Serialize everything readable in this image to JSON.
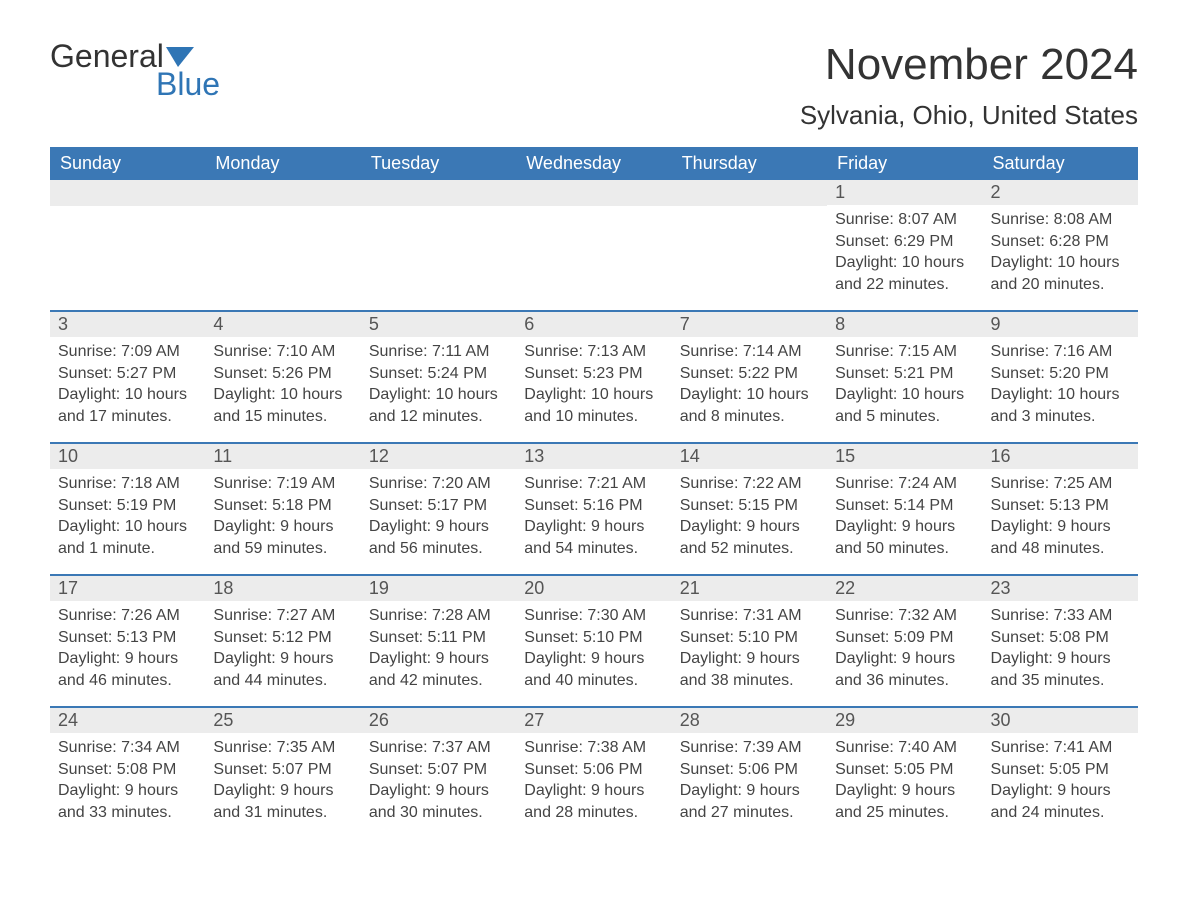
{
  "logo": {
    "text1": "General",
    "text2": "Blue",
    "flag_color": "#2f75b5"
  },
  "title": "November 2024",
  "location": "Sylvania, Ohio, United States",
  "colors": {
    "header_bg": "#3b78b5",
    "header_fg": "#ffffff",
    "daynum_bg": "#ececec",
    "rule": "#3b78b5",
    "text": "#333333",
    "accent": "#2f75b5"
  },
  "days_of_week": [
    "Sunday",
    "Monday",
    "Tuesday",
    "Wednesday",
    "Thursday",
    "Friday",
    "Saturday"
  ],
  "weeks": [
    [
      null,
      null,
      null,
      null,
      null,
      {
        "n": "1",
        "sunrise": "8:07 AM",
        "sunset": "6:29 PM",
        "daylight": "10 hours and 22 minutes."
      },
      {
        "n": "2",
        "sunrise": "8:08 AM",
        "sunset": "6:28 PM",
        "daylight": "10 hours and 20 minutes."
      }
    ],
    [
      {
        "n": "3",
        "sunrise": "7:09 AM",
        "sunset": "5:27 PM",
        "daylight": "10 hours and 17 minutes."
      },
      {
        "n": "4",
        "sunrise": "7:10 AM",
        "sunset": "5:26 PM",
        "daylight": "10 hours and 15 minutes."
      },
      {
        "n": "5",
        "sunrise": "7:11 AM",
        "sunset": "5:24 PM",
        "daylight": "10 hours and 12 minutes."
      },
      {
        "n": "6",
        "sunrise": "7:13 AM",
        "sunset": "5:23 PM",
        "daylight": "10 hours and 10 minutes."
      },
      {
        "n": "7",
        "sunrise": "7:14 AM",
        "sunset": "5:22 PM",
        "daylight": "10 hours and 8 minutes."
      },
      {
        "n": "8",
        "sunrise": "7:15 AM",
        "sunset": "5:21 PM",
        "daylight": "10 hours and 5 minutes."
      },
      {
        "n": "9",
        "sunrise": "7:16 AM",
        "sunset": "5:20 PM",
        "daylight": "10 hours and 3 minutes."
      }
    ],
    [
      {
        "n": "10",
        "sunrise": "7:18 AM",
        "sunset": "5:19 PM",
        "daylight": "10 hours and 1 minute."
      },
      {
        "n": "11",
        "sunrise": "7:19 AM",
        "sunset": "5:18 PM",
        "daylight": "9 hours and 59 minutes."
      },
      {
        "n": "12",
        "sunrise": "7:20 AM",
        "sunset": "5:17 PM",
        "daylight": "9 hours and 56 minutes."
      },
      {
        "n": "13",
        "sunrise": "7:21 AM",
        "sunset": "5:16 PM",
        "daylight": "9 hours and 54 minutes."
      },
      {
        "n": "14",
        "sunrise": "7:22 AM",
        "sunset": "5:15 PM",
        "daylight": "9 hours and 52 minutes."
      },
      {
        "n": "15",
        "sunrise": "7:24 AM",
        "sunset": "5:14 PM",
        "daylight": "9 hours and 50 minutes."
      },
      {
        "n": "16",
        "sunrise": "7:25 AM",
        "sunset": "5:13 PM",
        "daylight": "9 hours and 48 minutes."
      }
    ],
    [
      {
        "n": "17",
        "sunrise": "7:26 AM",
        "sunset": "5:13 PM",
        "daylight": "9 hours and 46 minutes."
      },
      {
        "n": "18",
        "sunrise": "7:27 AM",
        "sunset": "5:12 PM",
        "daylight": "9 hours and 44 minutes."
      },
      {
        "n": "19",
        "sunrise": "7:28 AM",
        "sunset": "5:11 PM",
        "daylight": "9 hours and 42 minutes."
      },
      {
        "n": "20",
        "sunrise": "7:30 AM",
        "sunset": "5:10 PM",
        "daylight": "9 hours and 40 minutes."
      },
      {
        "n": "21",
        "sunrise": "7:31 AM",
        "sunset": "5:10 PM",
        "daylight": "9 hours and 38 minutes."
      },
      {
        "n": "22",
        "sunrise": "7:32 AM",
        "sunset": "5:09 PM",
        "daylight": "9 hours and 36 minutes."
      },
      {
        "n": "23",
        "sunrise": "7:33 AM",
        "sunset": "5:08 PM",
        "daylight": "9 hours and 35 minutes."
      }
    ],
    [
      {
        "n": "24",
        "sunrise": "7:34 AM",
        "sunset": "5:08 PM",
        "daylight": "9 hours and 33 minutes."
      },
      {
        "n": "25",
        "sunrise": "7:35 AM",
        "sunset": "5:07 PM",
        "daylight": "9 hours and 31 minutes."
      },
      {
        "n": "26",
        "sunrise": "7:37 AM",
        "sunset": "5:07 PM",
        "daylight": "9 hours and 30 minutes."
      },
      {
        "n": "27",
        "sunrise": "7:38 AM",
        "sunset": "5:06 PM",
        "daylight": "9 hours and 28 minutes."
      },
      {
        "n": "28",
        "sunrise": "7:39 AM",
        "sunset": "5:06 PM",
        "daylight": "9 hours and 27 minutes."
      },
      {
        "n": "29",
        "sunrise": "7:40 AM",
        "sunset": "5:05 PM",
        "daylight": "9 hours and 25 minutes."
      },
      {
        "n": "30",
        "sunrise": "7:41 AM",
        "sunset": "5:05 PM",
        "daylight": "9 hours and 24 minutes."
      }
    ]
  ],
  "labels": {
    "sunrise": "Sunrise: ",
    "sunset": "Sunset: ",
    "daylight": "Daylight: "
  }
}
